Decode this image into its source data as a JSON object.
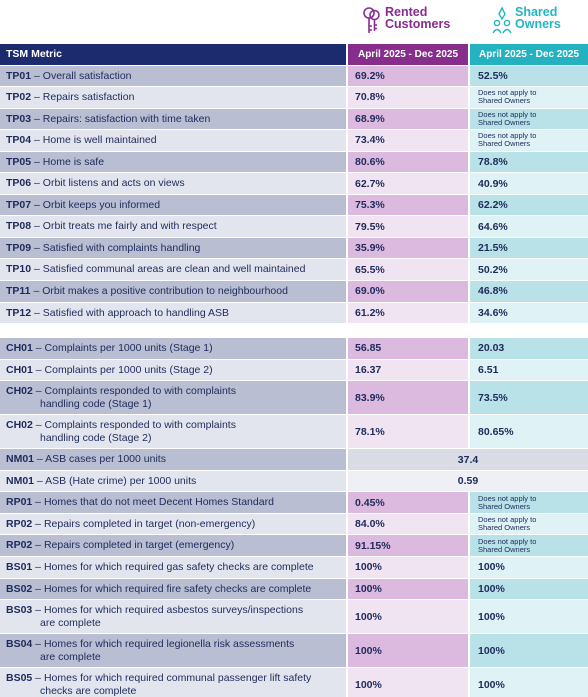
{
  "logos": {
    "rented": {
      "line1": "Rented",
      "line2": "Customers",
      "icon": "keys-icon",
      "color": "#8a2c8f"
    },
    "shared": {
      "line1": "Shared",
      "line2": "Owners",
      "icon": "people-icon",
      "color": "#25b5c1"
    }
  },
  "header": {
    "metric": "TSM Metric",
    "rented_period": "April 2025 - Dec 2025",
    "shared_period": "April 2025 - Dec 2025"
  },
  "not_apply": {
    "line1": "Does not apply to",
    "line2": "Shared Owners"
  },
  "rows": [
    {
      "code": "TP01",
      "text": "Overall satisfaction",
      "rented": "69.2%",
      "shared": "52.5%"
    },
    {
      "code": "TP02",
      "text": "Repairs satisfaction",
      "rented": "70.8%",
      "shared": null
    },
    {
      "code": "TP03",
      "text": "Repairs: satisfaction with time taken",
      "rented": "68.9%",
      "shared": null
    },
    {
      "code": "TP04",
      "text": "Home is well maintained",
      "rented": "73.4%",
      "shared": null
    },
    {
      "code": "TP05",
      "text": "Home is safe",
      "rented": "80.6%",
      "shared": "78.8%"
    },
    {
      "code": "TP06",
      "text": "Orbit listens and acts on views",
      "rented": "62.7%",
      "shared": "40.9%"
    },
    {
      "code": "TP07",
      "text": "Orbit keeps you informed",
      "rented": "75.3%",
      "shared": "62.2%"
    },
    {
      "code": "TP08",
      "text": "Orbit treats me fairly and with respect",
      "rented": "79.5%",
      "shared": "64.6%"
    },
    {
      "code": "TP09",
      "text": "Satisfied with complaints handling",
      "rented": "35.9%",
      "shared": "21.5%"
    },
    {
      "code": "TP10",
      "text": "Satisfied communal areas are clean and well maintained",
      "rented": "65.5%",
      "shared": "50.2%"
    },
    {
      "code": "TP11",
      "text": "Orbit makes a positive contribution to neighbourhood",
      "rented": "69.0%",
      "shared": "46.8%"
    },
    {
      "code": "TP12",
      "text": "Satisfied with approach to handling ASB",
      "rented": "61.2%",
      "shared": "34.6%"
    },
    {
      "code": "CH01",
      "text": "Complaints per 1000 units (Stage 1)",
      "rented": "56.85",
      "shared": "20.03"
    },
    {
      "code": "CH01",
      "text": "Complaints per 1000 units (Stage 2)",
      "rented": "16.37",
      "shared": "6.51"
    },
    {
      "code": "CH02",
      "text": "Complaints responded to with complaints",
      "text2": "handling code (Stage 1)",
      "rented": "83.9%",
      "shared": "73.5%"
    },
    {
      "code": "CH02",
      "text": "Complaints responded to with complaints",
      "text2": "handling code (Stage 2)",
      "rented": "78.1%",
      "shared": "80.65%"
    },
    {
      "code": "NM01",
      "text": "ASB cases per 1000 units",
      "combined": "37.4"
    },
    {
      "code": "NM01",
      "text": "ASB (Hate crime) per 1000 units",
      "combined": "0.59"
    },
    {
      "code": "RP01",
      "text": "Homes that do not meet Decent Homes Standard",
      "rented": "0.45%",
      "shared": null
    },
    {
      "code": "RP02",
      "text": "Repairs completed in target (non-emergency)",
      "rented": "84.0%",
      "shared": null
    },
    {
      "code": "RP02",
      "text": "Repairs completed in target (emergency)",
      "rented": "91.15%",
      "shared": null
    },
    {
      "code": "BS01",
      "text": "Homes for which required gas safety checks are complete",
      "rented": "100%",
      "shared": "100%"
    },
    {
      "code": "BS02",
      "text": "Homes for which required fire safety checks are complete",
      "rented": "100%",
      "shared": "100%"
    },
    {
      "code": "BS03",
      "text": "Homes for which required asbestos surveys/inspections",
      "text2": "are complete",
      "rented": "100%",
      "shared": "100%"
    },
    {
      "code": "BS04",
      "text": "Homes for which required legionella risk assessments",
      "text2": "are complete",
      "rented": "100%",
      "shared": "100%"
    },
    {
      "code": "BS05",
      "text": "Homes for which required communal passenger lift safety",
      "text2": "checks are complete",
      "rented": "100%",
      "shared": "100%"
    }
  ]
}
